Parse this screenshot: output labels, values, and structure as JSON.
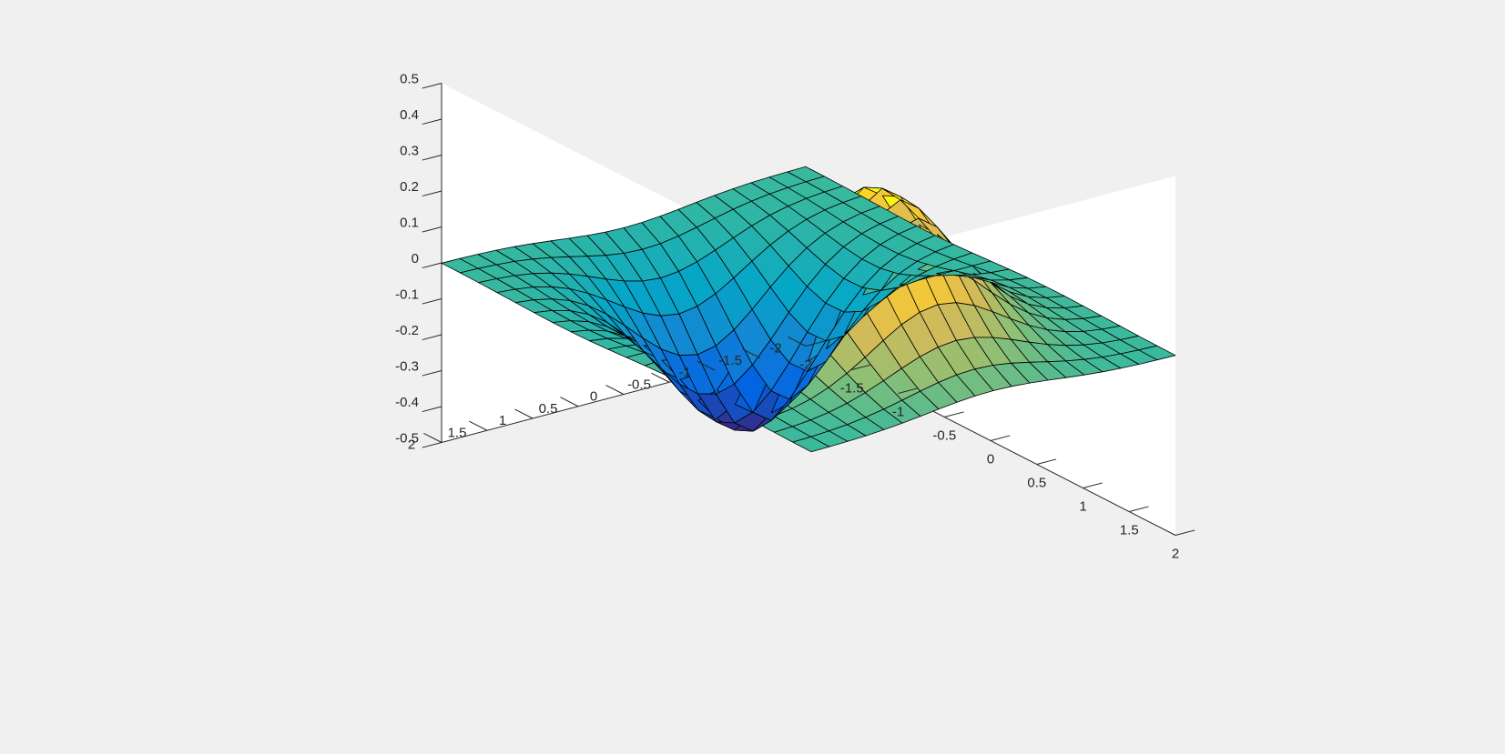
{
  "chart_data": {
    "type": "surface",
    "function": "z = x * exp(-x^2 - y^2)",
    "x": [
      -2,
      -1.8,
      -1.6,
      -1.4,
      -1.2,
      -1,
      -0.8,
      -0.6,
      -0.4,
      -0.2,
      0,
      0.2,
      0.4,
      0.6,
      0.8,
      1,
      1.2,
      1.4,
      1.6,
      1.8,
      2
    ],
    "y": [
      -2,
      -1.8,
      -1.6,
      -1.4,
      -1.2,
      -1,
      -0.8,
      -0.6,
      -0.4,
      -0.2,
      0,
      0.2,
      0.4,
      0.6,
      0.8,
      1,
      1.2,
      1.4,
      1.6,
      1.8,
      2
    ],
    "xlim": [
      -2,
      2
    ],
    "ylim": [
      -2,
      2
    ],
    "zlim": [
      -0.5,
      0.5
    ],
    "x_ticks": [
      "-2",
      "-1.5",
      "-1",
      "-0.5",
      "0",
      "0.5",
      "1",
      "1.5",
      "2"
    ],
    "y_ticks": [
      "-2",
      "-1.5",
      "-1",
      "-0.5",
      "0",
      "0.5",
      "1",
      "1.5",
      "2"
    ],
    "z_ticks": [
      "-0.5",
      "-0.4",
      "-0.3",
      "-0.2",
      "-0.1",
      "0",
      "0.1",
      "0.2",
      "0.3",
      "0.4",
      "0.5"
    ],
    "colormap": "parula",
    "colors": {
      "figure_background": "#f0f0f0",
      "axes_background": "#ffffff",
      "edge": "#000000",
      "axis_line": "#262626"
    },
    "title": "",
    "xlabel": "",
    "ylabel": "",
    "zlabel": ""
  }
}
